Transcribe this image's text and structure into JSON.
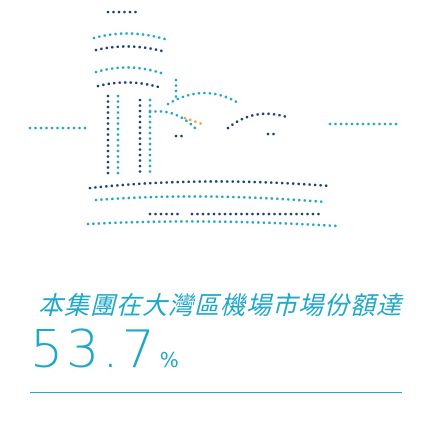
{
  "headline": "本集團在大灣區機場市場份額達",
  "stat": {
    "value": "53.7",
    "unit": "%"
  }
}
